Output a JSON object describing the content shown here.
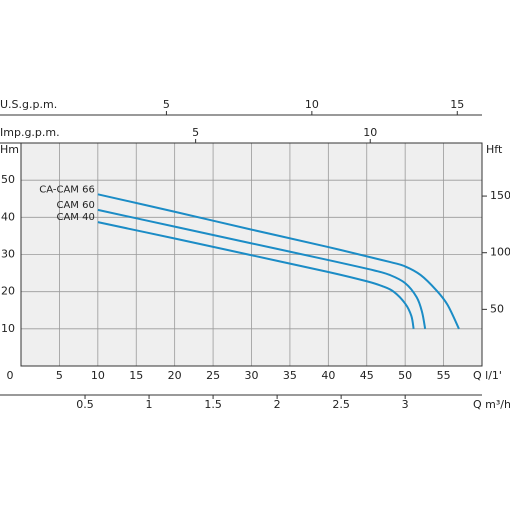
{
  "chart_data": {
    "type": "line",
    "y_label": "Hm",
    "y2_label": "Hft",
    "x_label": "Q l/1'",
    "xlim": [
      0,
      60
    ],
    "xticks": [
      0,
      5,
      10,
      15,
      20,
      25,
      30,
      35,
      40,
      45,
      50,
      55
    ],
    "ylim": [
      0,
      60
    ],
    "yticks": [
      10,
      20,
      30,
      40,
      50
    ],
    "y2lim": [
      0,
      196.85
    ],
    "y2ticks": [
      50,
      100,
      150
    ],
    "grid": true,
    "extra_axes": [
      {
        "label": "U.S.g.p.m.",
        "position": "top",
        "lim": [
          0,
          15.85
        ],
        "ticks": [
          5,
          10,
          15
        ]
      },
      {
        "label": "Imp.g.p.m.",
        "position": "top",
        "lim": [
          0,
          13.2
        ],
        "ticks": [
          5,
          10
        ]
      },
      {
        "label": "Q m³/h",
        "position": "bottom",
        "lim": [
          0,
          3.6
        ],
        "ticks": [
          0.5,
          1,
          1.5,
          2,
          2.5,
          3
        ]
      }
    ],
    "series": [
      {
        "name": "CA-CAM 66",
        "color": "#1b8cc6",
        "x": [
          10,
          20,
          30,
          40,
          48,
          50,
          52,
          54,
          55.5,
          57
        ],
        "values": [
          46.2,
          41.5,
          36.7,
          32,
          28,
          26.8,
          24.5,
          20.5,
          16.5,
          10
        ]
      },
      {
        "name": "CAM 60",
        "color": "#1b8cc6",
        "x": [
          10,
          20,
          30,
          40,
          46,
          48,
          50,
          51.5,
          52.2,
          52.6
        ],
        "values": [
          42,
          37.5,
          33,
          28.5,
          25.7,
          24.5,
          22.3,
          18.5,
          14.5,
          10
        ]
      },
      {
        "name": "CAM 40",
        "color": "#1b8cc6",
        "x": [
          10,
          20,
          30,
          40,
          45,
          47,
          48.5,
          50,
          50.8,
          51.1
        ],
        "values": [
          38.7,
          34.3,
          29.8,
          25.3,
          22.8,
          21.5,
          20,
          16.8,
          13.5,
          10
        ]
      }
    ]
  }
}
